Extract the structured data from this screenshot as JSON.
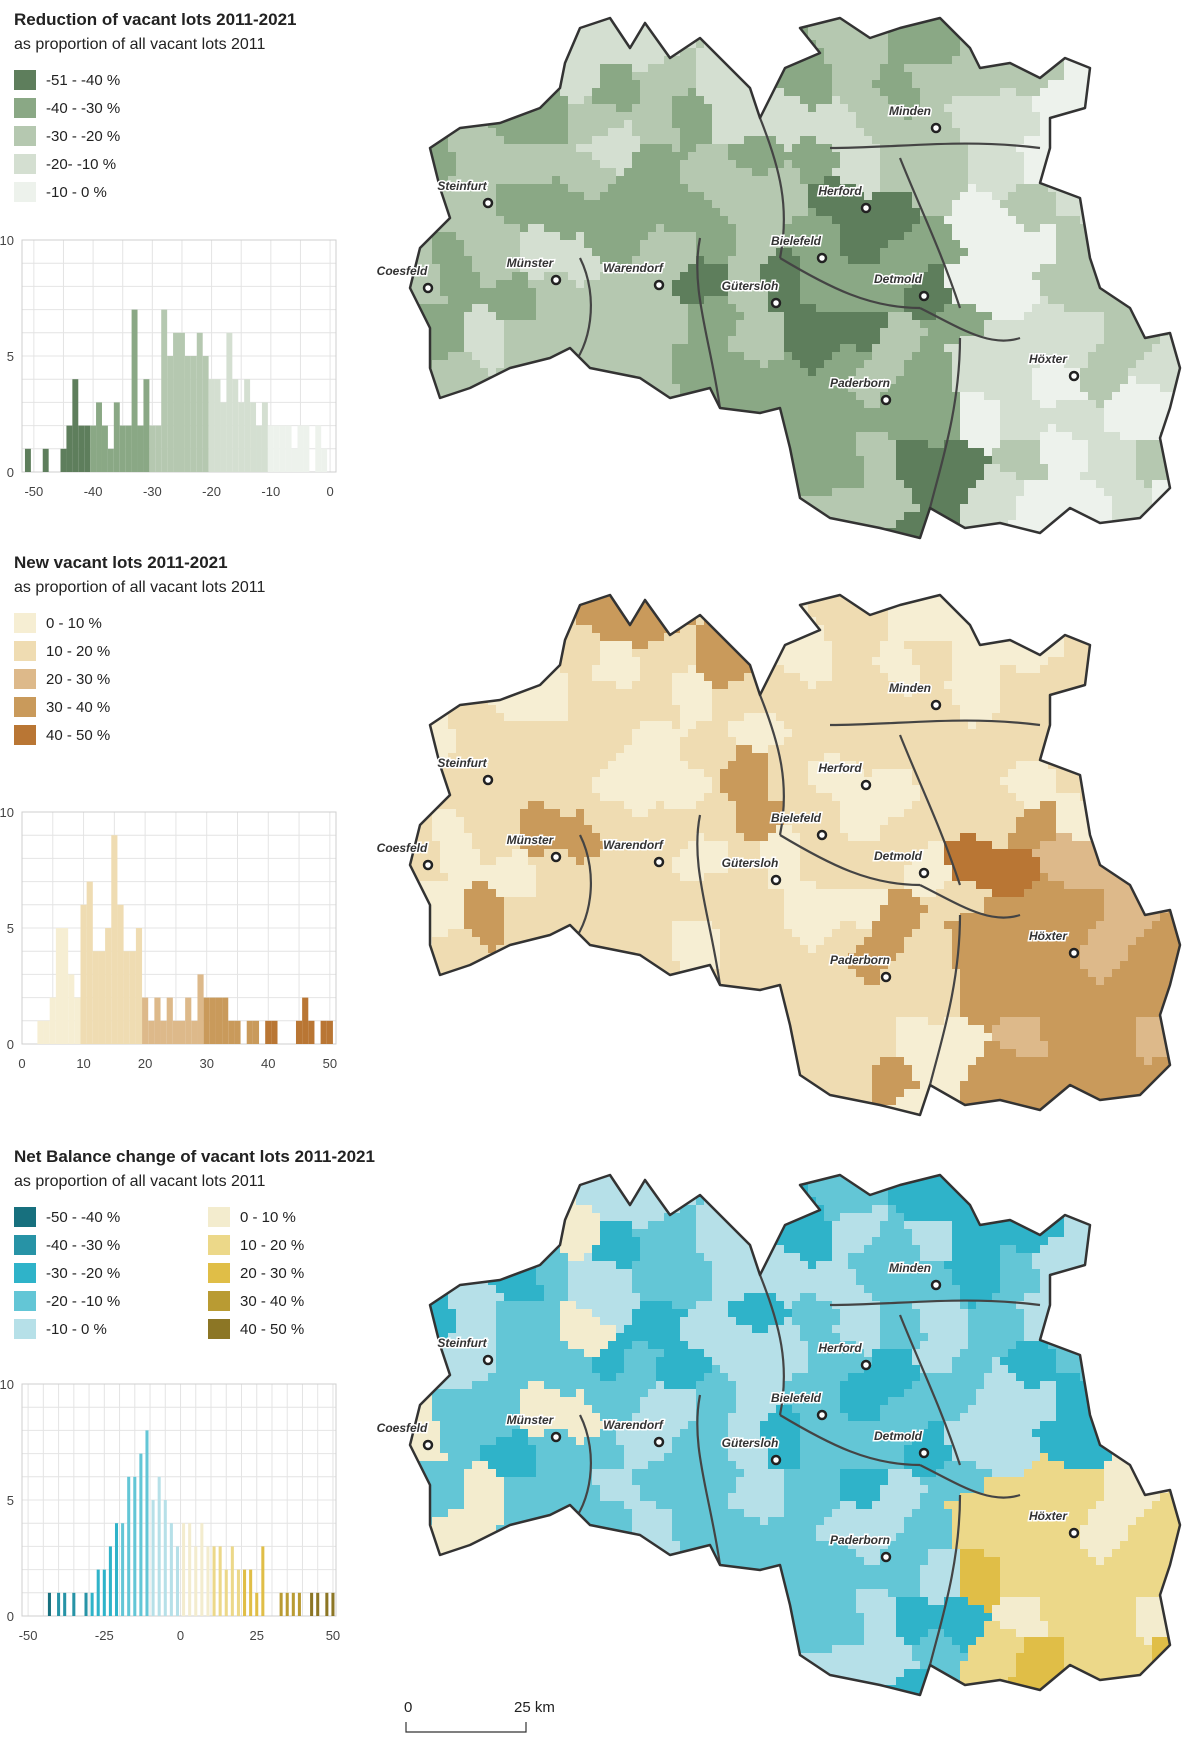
{
  "panels": [
    {
      "id": "reduction",
      "title": "Reduction of vacant lots 2011-2021",
      "subtitle": "as proportion of all vacant lots 2011",
      "legend": [
        {
          "label": "-51 - -40 %",
          "color": "#5e7e5c"
        },
        {
          "label": "-40 - -30 %",
          "color": "#8aa885"
        },
        {
          "label": "-30 - -20 %",
          "color": "#b5c8b0"
        },
        {
          "label": "-20- -10 %",
          "color": "#d4dfd1"
        },
        {
          "label": "-10 - 0 %",
          "color": "#edf2ec"
        }
      ],
      "histogram": {
        "x_ticks": [
          "-50",
          "-40",
          "-30",
          "-20",
          "-10",
          "0"
        ],
        "y_ticks": [
          "0",
          "5",
          "10"
        ],
        "xlim": [
          -52,
          1
        ],
        "ylim": [
          0,
          10
        ],
        "bins": [
          [
            -51,
            1
          ],
          [
            -48,
            1
          ],
          [
            -45,
            1
          ],
          [
            -44,
            2
          ],
          [
            -43,
            4
          ],
          [
            -42,
            2
          ],
          [
            -41,
            2
          ],
          [
            -40,
            2
          ],
          [
            -39,
            3
          ],
          [
            -38,
            2
          ],
          [
            -37,
            1
          ],
          [
            -36,
            3
          ],
          [
            -35,
            2
          ],
          [
            -34,
            2
          ],
          [
            -33,
            7
          ],
          [
            -32,
            2
          ],
          [
            -31,
            4
          ],
          [
            -30,
            2
          ],
          [
            -29,
            2
          ],
          [
            -28,
            7
          ],
          [
            -27,
            5
          ],
          [
            -26,
            6
          ],
          [
            -25,
            6
          ],
          [
            -24,
            5
          ],
          [
            -23,
            5
          ],
          [
            -22,
            6
          ],
          [
            -21,
            5
          ],
          [
            -20,
            4
          ],
          [
            -19,
            4
          ],
          [
            -18,
            3
          ],
          [
            -17,
            6
          ],
          [
            -16,
            4
          ],
          [
            -15,
            3
          ],
          [
            -14,
            4
          ],
          [
            -13,
            3
          ],
          [
            -12,
            2
          ],
          [
            -11,
            3
          ],
          [
            -10,
            2
          ],
          [
            -9,
            2
          ],
          [
            -8,
            2
          ],
          [
            -7,
            2
          ],
          [
            -6,
            1
          ],
          [
            -5,
            2
          ],
          [
            -4,
            2
          ],
          [
            -2,
            2
          ],
          [
            -1,
            1
          ]
        ]
      },
      "cities": [
        "Minden",
        "Herford",
        "Steinfurt",
        "Bielefeld",
        "Coesfeld",
        "Münster",
        "Warendorf",
        "Gütersloh",
        "Detmold",
        "Höxter",
        "Paderborn"
      ]
    },
    {
      "id": "new",
      "title": "New vacant lots 2011-2021",
      "subtitle": "as proportion of all vacant lots 2011",
      "legend": [
        {
          "label": "0 - 10 %",
          "color": "#f6eed3"
        },
        {
          "label": "10 - 20 %",
          "color": "#efdcb2"
        },
        {
          "label": "20 - 30 %",
          "color": "#ddb98a"
        },
        {
          "label": "30 - 40 %",
          "color": "#c99a5b"
        },
        {
          "label": "40 - 50 %",
          "color": "#b97634"
        }
      ],
      "histogram": {
        "x_ticks": [
          "0",
          "10",
          "20",
          "30",
          "40",
          "50"
        ],
        "y_ticks": [
          "0",
          "5",
          "10"
        ],
        "xlim": [
          0,
          51
        ],
        "ylim": [
          0,
          10
        ],
        "bins": [
          [
            3,
            1
          ],
          [
            4,
            1
          ],
          [
            5,
            2
          ],
          [
            6,
            5
          ],
          [
            7,
            5
          ],
          [
            8,
            3
          ],
          [
            9,
            2
          ],
          [
            10,
            6
          ],
          [
            11,
            7
          ],
          [
            12,
            4
          ],
          [
            13,
            4
          ],
          [
            14,
            5
          ],
          [
            15,
            9
          ],
          [
            16,
            6
          ],
          [
            17,
            4
          ],
          [
            18,
            4
          ],
          [
            19,
            5
          ],
          [
            20,
            2
          ],
          [
            21,
            1
          ],
          [
            22,
            2
          ],
          [
            23,
            1
          ],
          [
            24,
            2
          ],
          [
            25,
            1
          ],
          [
            26,
            1
          ],
          [
            27,
            2
          ],
          [
            28,
            1
          ],
          [
            29,
            3
          ],
          [
            30,
            2
          ],
          [
            31,
            2
          ],
          [
            32,
            2
          ],
          [
            33,
            2
          ],
          [
            34,
            1
          ],
          [
            35,
            1
          ],
          [
            37,
            1
          ],
          [
            38,
            1
          ],
          [
            40,
            1
          ],
          [
            41,
            1
          ],
          [
            45,
            1
          ],
          [
            46,
            2
          ],
          [
            47,
            1
          ],
          [
            49,
            1
          ],
          [
            50,
            1
          ]
        ]
      },
      "cities": [
        "Minden",
        "Herford",
        "Steinfurt",
        "Bielefeld",
        "Coesfeld",
        "Münster",
        "Warendorf",
        "Gütersloh",
        "Detmold",
        "Höxter",
        "Paderborn"
      ]
    },
    {
      "id": "net",
      "title": "Net Balance change of vacant lots 2011-2021",
      "subtitle": "as proportion of all vacant lots 2011",
      "legend": [
        {
          "label": "-50 - -40 %",
          "color": "#17707e"
        },
        {
          "label": "-40 - -30 %",
          "color": "#2793a6"
        },
        {
          "label": "-30 - -20 %",
          "color": "#2fb3c9"
        },
        {
          "label": "-20 - -10 %",
          "color": "#63c6d6"
        },
        {
          "label": "-10 - 0 %",
          "color": "#b6e0e8"
        },
        {
          "label": "0 - 10 %",
          "color": "#f3ecce"
        },
        {
          "label": "10 - 20 %",
          "color": "#ecd889"
        },
        {
          "label": "20 - 30 %",
          "color": "#e0be47"
        },
        {
          "label": "30 - 40 %",
          "color": "#b99b33"
        },
        {
          "label": "40 - 50 %",
          "color": "#8c7625"
        }
      ],
      "histogram": {
        "x_ticks": [
          "-50",
          "-25",
          "0",
          "25",
          "50"
        ],
        "y_ticks": [
          "0",
          "5",
          "10"
        ],
        "xlim": [
          -52,
          51
        ],
        "ylim": [
          0,
          10
        ],
        "bins": [
          [
            -43,
            1
          ],
          [
            -40,
            1
          ],
          [
            -38,
            1
          ],
          [
            -35,
            1
          ],
          [
            -31,
            1
          ],
          [
            -29,
            1
          ],
          [
            -27,
            2
          ],
          [
            -25,
            2
          ],
          [
            -23,
            3
          ],
          [
            -21,
            4
          ],
          [
            -19,
            4
          ],
          [
            -17,
            6
          ],
          [
            -15,
            6
          ],
          [
            -13,
            7
          ],
          [
            -11,
            8
          ],
          [
            -9,
            5
          ],
          [
            -7,
            6
          ],
          [
            -5,
            5
          ],
          [
            -3,
            4
          ],
          [
            -1,
            3
          ],
          [
            1,
            4
          ],
          [
            3,
            4
          ],
          [
            5,
            3
          ],
          [
            7,
            4
          ],
          [
            9,
            3
          ],
          [
            11,
            3
          ],
          [
            13,
            3
          ],
          [
            15,
            2
          ],
          [
            17,
            3
          ],
          [
            19,
            2
          ],
          [
            21,
            2
          ],
          [
            23,
            2
          ],
          [
            25,
            1
          ],
          [
            27,
            3
          ],
          [
            33,
            1
          ],
          [
            35,
            1
          ],
          [
            37,
            1
          ],
          [
            39,
            1
          ],
          [
            43,
            1
          ],
          [
            45,
            1
          ],
          [
            48,
            1
          ],
          [
            50,
            1
          ]
        ]
      },
      "cities": [
        "Minden",
        "Herford",
        "Steinfurt",
        "Bielefeld",
        "Coesfeld",
        "Münster",
        "Warendorf",
        "Gütersloh",
        "Detmold",
        "Höxter",
        "Paderborn"
      ]
    }
  ],
  "scale": {
    "start": "0",
    "end": "25 km"
  }
}
